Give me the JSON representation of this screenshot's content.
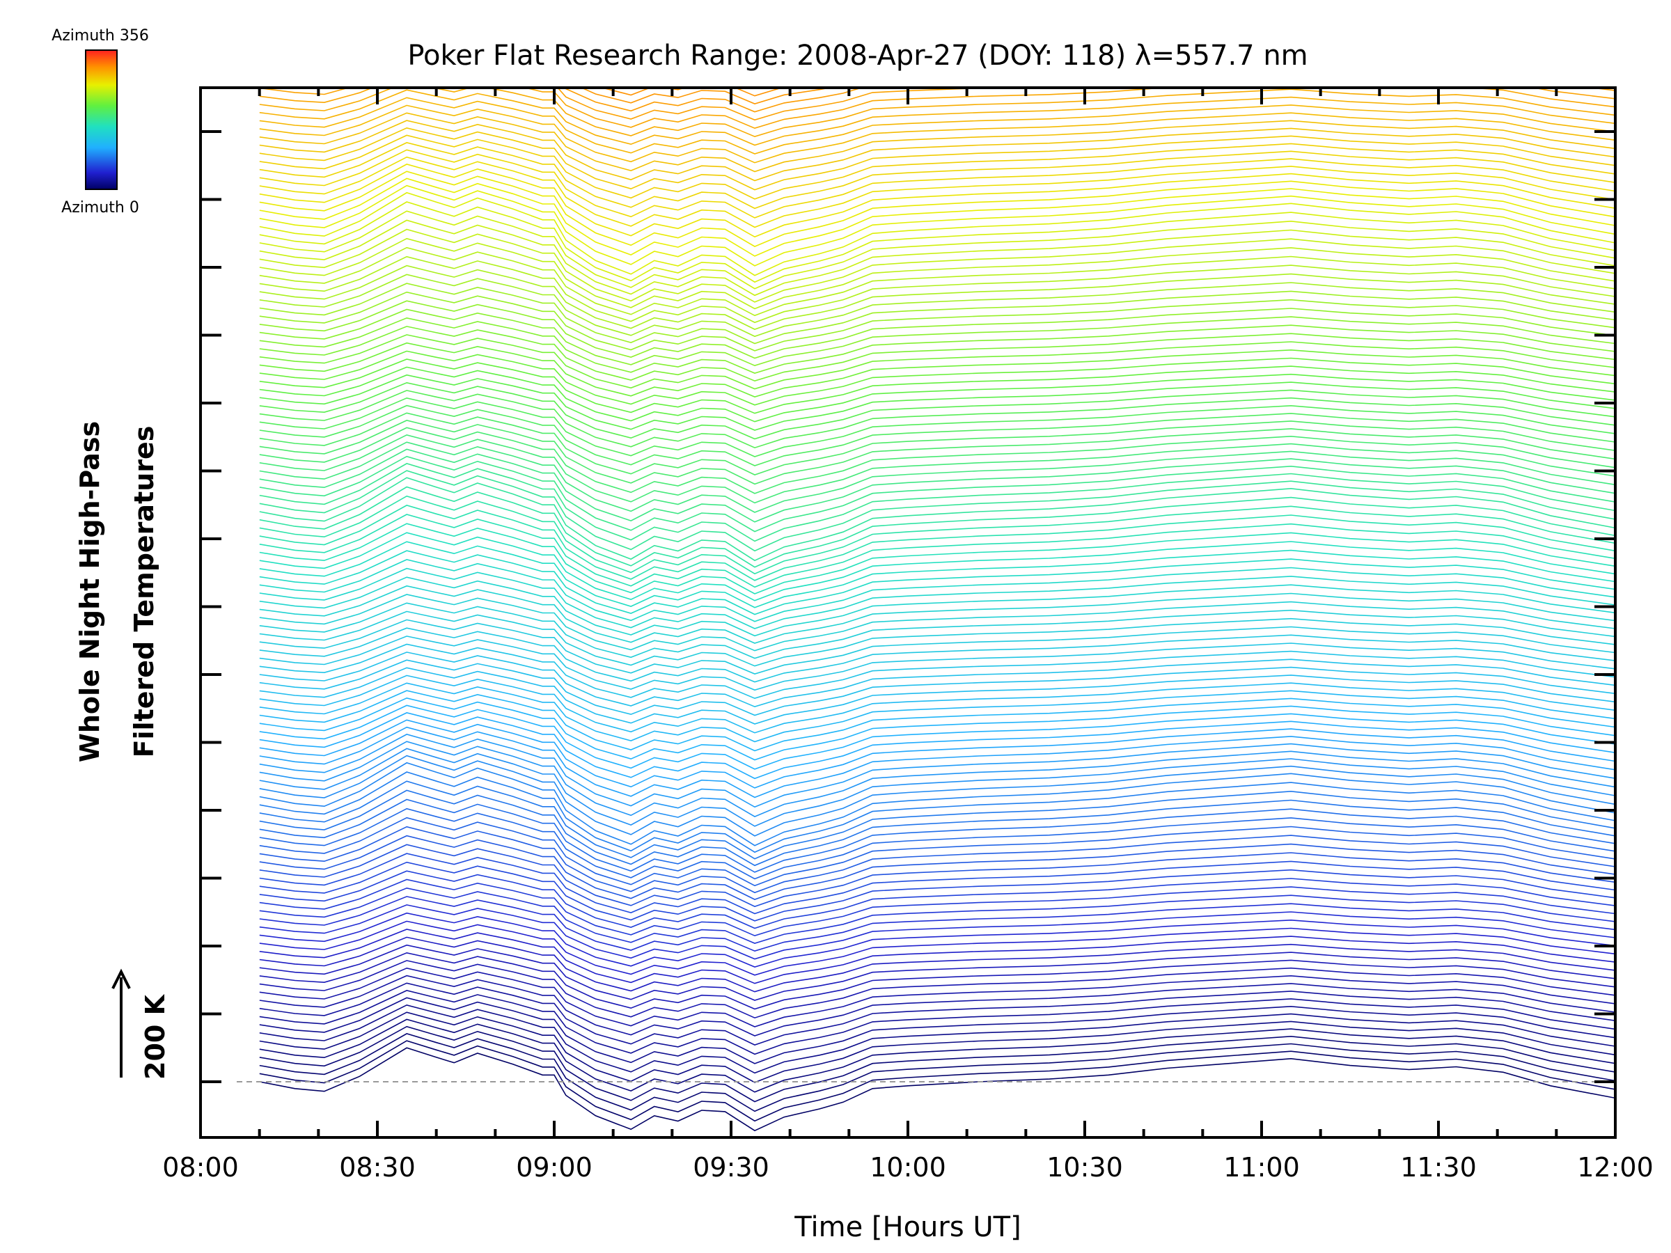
{
  "chart_data": {
    "type": "line",
    "title": "Poker Flat Research Range: 2008-Apr-27 (DOY: 118) λ=557.7 nm",
    "xlabel": "Time [Hours UT]",
    "ylabel_line1": "Whole Night High-Pass",
    "ylabel_line2": "Filtered Temperatures",
    "scale_label": "200 K",
    "x_ticks": [
      "08:00",
      "08:30",
      "09:00",
      "09:30",
      "10:00",
      "10:30",
      "11:00",
      "11:30",
      "12:00"
    ],
    "xlim_hours": [
      8.0,
      12.0
    ],
    "colorbar": {
      "top_label": "Azimuth 356",
      "bottom_label": "Azimuth 0",
      "min": 0,
      "max": 356
    },
    "sample_times_hours": [
      8.167,
      8.267,
      8.35,
      8.45,
      8.583,
      8.667,
      8.717,
      8.783,
      8.883,
      8.967,
      9.0,
      9.033,
      9.117,
      9.217,
      9.283,
      9.35,
      9.417,
      9.483,
      9.567,
      9.65,
      9.75,
      9.817,
      9.9,
      10.0,
      10.2,
      10.4,
      10.567,
      10.733,
      10.883,
      11.083,
      11.25,
      11.417,
      11.55,
      11.683,
      11.817,
      12.0
    ],
    "base_profile_K": [
      0,
      -10,
      -14,
      8,
      50,
      36,
      28,
      42,
      26,
      10,
      10,
      -20,
      -50,
      -70,
      -50,
      -58,
      -42,
      -44,
      -72,
      -52,
      -40,
      -30,
      -10,
      -6,
      0,
      4,
      10,
      20,
      26,
      34,
      24,
      18,
      22,
      14,
      -6,
      -24
    ],
    "series_count": 140,
    "azimuth_step": 2.5,
    "row_spacing_K": 12,
    "azimuth_groups": 4,
    "reference_temperature_K": 0
  }
}
